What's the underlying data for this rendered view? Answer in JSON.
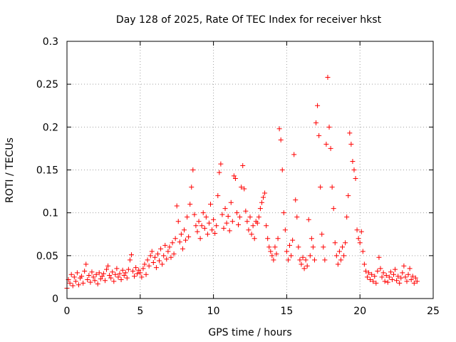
{
  "chart_data": {
    "type": "scatter",
    "title": "Day 128 of 2025, Rate Of TEC Index for receiver hkst",
    "xlabel": "GPS time / hours",
    "ylabel": "ROTI / TECUs",
    "xlim": [
      0,
      25
    ],
    "ylim": [
      0,
      0.3
    ],
    "xticks": [
      0,
      5,
      10,
      15,
      20,
      25
    ],
    "xtick_labels": [
      "0",
      "5",
      "10",
      "15",
      "20",
      "25"
    ],
    "yticks": [
      0,
      0.05,
      0.1,
      0.15,
      0.2,
      0.25,
      0.3
    ],
    "ytick_labels": [
      "0",
      "0.05",
      "0.1",
      "0.15",
      "0.2",
      "0.25",
      "0.3"
    ],
    "grid": true,
    "marker": "+",
    "color": "#ff0000",
    "series": [
      {
        "points": [
          [
            0.0,
            0.012
          ],
          [
            0.1,
            0.022
          ],
          [
            0.2,
            0.018
          ],
          [
            0.3,
            0.028
          ],
          [
            0.4,
            0.015
          ],
          [
            0.5,
            0.025
          ],
          [
            0.6,
            0.02
          ],
          [
            0.7,
            0.03
          ],
          [
            0.8,
            0.016
          ],
          [
            0.9,
            0.024
          ],
          [
            1.0,
            0.026
          ],
          [
            1.1,
            0.018
          ],
          [
            1.2,
            0.032
          ],
          [
            1.3,
            0.04
          ],
          [
            1.4,
            0.022
          ],
          [
            1.5,
            0.027
          ],
          [
            1.6,
            0.019
          ],
          [
            1.7,
            0.031
          ],
          [
            1.8,
            0.025
          ],
          [
            1.9,
            0.021
          ],
          [
            2.0,
            0.028
          ],
          [
            2.1,
            0.017
          ],
          [
            2.2,
            0.03
          ],
          [
            2.3,
            0.023
          ],
          [
            2.4,
            0.026
          ],
          [
            2.5,
            0.029
          ],
          [
            2.6,
            0.021
          ],
          [
            2.7,
            0.034
          ],
          [
            2.8,
            0.038
          ],
          [
            2.9,
            0.027
          ],
          [
            3.0,
            0.024
          ],
          [
            3.1,
            0.031
          ],
          [
            3.2,
            0.02
          ],
          [
            3.3,
            0.028
          ],
          [
            3.4,
            0.035
          ],
          [
            3.5,
            0.025
          ],
          [
            3.6,
            0.029
          ],
          [
            3.7,
            0.022
          ],
          [
            3.8,
            0.033
          ],
          [
            3.9,
            0.027
          ],
          [
            4.0,
            0.03
          ],
          [
            4.1,
            0.024
          ],
          [
            4.2,
            0.034
          ],
          [
            4.3,
            0.045
          ],
          [
            4.4,
            0.051
          ],
          [
            4.5,
            0.032
          ],
          [
            4.6,
            0.026
          ],
          [
            4.7,
            0.036
          ],
          [
            4.8,
            0.029
          ],
          [
            4.9,
            0.033
          ],
          [
            5.0,
            0.03
          ],
          [
            5.1,
            0.025
          ],
          [
            5.2,
            0.035
          ],
          [
            5.3,
            0.04
          ],
          [
            5.4,
            0.028
          ],
          [
            5.5,
            0.045
          ],
          [
            5.6,
            0.038
          ],
          [
            5.7,
            0.05
          ],
          [
            5.8,
            0.055
          ],
          [
            5.9,
            0.042
          ],
          [
            6.0,
            0.048
          ],
          [
            6.1,
            0.036
          ],
          [
            6.2,
            0.052
          ],
          [
            6.3,
            0.044
          ],
          [
            6.4,
            0.058
          ],
          [
            6.5,
            0.04
          ],
          [
            6.6,
            0.05
          ],
          [
            6.7,
            0.062
          ],
          [
            6.8,
            0.046
          ],
          [
            6.9,
            0.055
          ],
          [
            7.0,
            0.06
          ],
          [
            7.1,
            0.048
          ],
          [
            7.2,
            0.065
          ],
          [
            7.3,
            0.052
          ],
          [
            7.4,
            0.07
          ],
          [
            7.5,
            0.108
          ],
          [
            7.6,
            0.09
          ],
          [
            7.7,
            0.066
          ],
          [
            7.8,
            0.075
          ],
          [
            7.9,
            0.058
          ],
          [
            8.0,
            0.08
          ],
          [
            8.1,
            0.068
          ],
          [
            8.2,
            0.095
          ],
          [
            8.3,
            0.072
          ],
          [
            8.4,
            0.11
          ],
          [
            8.5,
            0.13
          ],
          [
            8.6,
            0.15
          ],
          [
            8.7,
            0.098
          ],
          [
            8.8,
            0.085
          ],
          [
            8.9,
            0.078
          ],
          [
            9.0,
            0.09
          ],
          [
            9.1,
            0.07
          ],
          [
            9.2,
            0.085
          ],
          [
            9.3,
            0.1
          ],
          [
            9.4,
            0.082
          ],
          [
            9.5,
            0.095
          ],
          [
            9.6,
            0.075
          ],
          [
            9.7,
            0.088
          ],
          [
            9.8,
            0.11
          ],
          [
            9.9,
            0.08
          ],
          [
            10.0,
            0.092
          ],
          [
            10.1,
            0.076
          ],
          [
            10.2,
            0.085
          ],
          [
            10.3,
            0.12
          ],
          [
            10.4,
            0.147
          ],
          [
            10.5,
            0.157
          ],
          [
            10.6,
            0.098
          ],
          [
            10.7,
            0.082
          ],
          [
            10.8,
            0.105
          ],
          [
            10.9,
            0.088
          ],
          [
            11.0,
            0.096
          ],
          [
            11.1,
            0.079
          ],
          [
            11.2,
            0.112
          ],
          [
            11.3,
            0.09
          ],
          [
            11.4,
            0.143
          ],
          [
            11.5,
            0.14
          ],
          [
            11.6,
            0.1
          ],
          [
            11.7,
            0.086
          ],
          [
            11.8,
            0.095
          ],
          [
            11.9,
            0.13
          ],
          [
            12.0,
            0.155
          ],
          [
            12.1,
            0.128
          ],
          [
            12.2,
            0.102
          ],
          [
            12.3,
            0.09
          ],
          [
            12.4,
            0.08
          ],
          [
            12.5,
            0.095
          ],
          [
            12.6,
            0.075
          ],
          [
            12.7,
            0.085
          ],
          [
            12.8,
            0.07
          ],
          [
            12.9,
            0.09
          ],
          [
            13.0,
            0.088
          ],
          [
            13.1,
            0.095
          ],
          [
            13.2,
            0.105
          ],
          [
            13.3,
            0.112
          ],
          [
            13.4,
            0.118
          ],
          [
            13.5,
            0.123
          ],
          [
            13.6,
            0.085
          ],
          [
            13.7,
            0.07
          ],
          [
            13.8,
            0.06
          ],
          [
            13.9,
            0.055
          ],
          [
            14.0,
            0.05
          ],
          [
            14.1,
            0.045
          ],
          [
            14.2,
            0.06
          ],
          [
            14.3,
            0.052
          ],
          [
            14.4,
            0.07
          ],
          [
            14.5,
            0.198
          ],
          [
            14.6,
            0.185
          ],
          [
            14.7,
            0.15
          ],
          [
            14.8,
            0.1
          ],
          [
            14.9,
            0.08
          ],
          [
            15.0,
            0.055
          ],
          [
            15.1,
            0.045
          ],
          [
            15.2,
            0.062
          ],
          [
            15.3,
            0.05
          ],
          [
            15.4,
            0.068
          ],
          [
            15.5,
            0.168
          ],
          [
            15.6,
            0.115
          ],
          [
            15.7,
            0.095
          ],
          [
            15.8,
            0.06
          ],
          [
            15.9,
            0.045
          ],
          [
            16.0,
            0.04
          ],
          [
            16.1,
            0.048
          ],
          [
            16.2,
            0.035
          ],
          [
            16.3,
            0.045
          ],
          [
            16.4,
            0.038
          ],
          [
            16.5,
            0.092
          ],
          [
            16.6,
            0.05
          ],
          [
            16.7,
            0.07
          ],
          [
            16.8,
            0.06
          ],
          [
            16.9,
            0.045
          ],
          [
            17.0,
            0.205
          ],
          [
            17.1,
            0.225
          ],
          [
            17.2,
            0.19
          ],
          [
            17.3,
            0.13
          ],
          [
            17.4,
            0.075
          ],
          [
            17.5,
            0.06
          ],
          [
            17.6,
            0.045
          ],
          [
            17.7,
            0.18
          ],
          [
            17.8,
            0.258
          ],
          [
            17.9,
            0.2
          ],
          [
            18.0,
            0.175
          ],
          [
            18.1,
            0.13
          ],
          [
            18.2,
            0.105
          ],
          [
            18.3,
            0.065
          ],
          [
            18.4,
            0.05
          ],
          [
            18.5,
            0.04
          ],
          [
            18.6,
            0.055
          ],
          [
            18.7,
            0.045
          ],
          [
            18.8,
            0.06
          ],
          [
            18.9,
            0.05
          ],
          [
            19.0,
            0.065
          ],
          [
            19.1,
            0.095
          ],
          [
            19.2,
            0.12
          ],
          [
            19.3,
            0.193
          ],
          [
            19.4,
            0.18
          ],
          [
            19.5,
            0.16
          ],
          [
            19.6,
            0.15
          ],
          [
            19.7,
            0.14
          ],
          [
            19.8,
            0.08
          ],
          [
            19.9,
            0.07
          ],
          [
            20.0,
            0.065
          ],
          [
            20.1,
            0.078
          ],
          [
            20.2,
            0.055
          ],
          [
            20.3,
            0.04
          ],
          [
            20.4,
            0.032
          ],
          [
            20.5,
            0.025
          ],
          [
            20.6,
            0.03
          ],
          [
            20.7,
            0.022
          ],
          [
            20.8,
            0.028
          ],
          [
            20.9,
            0.02
          ],
          [
            21.0,
            0.026
          ],
          [
            21.1,
            0.018
          ],
          [
            21.2,
            0.032
          ],
          [
            21.3,
            0.048
          ],
          [
            21.4,
            0.035
          ],
          [
            21.5,
            0.025
          ],
          [
            21.6,
            0.03
          ],
          [
            21.7,
            0.02
          ],
          [
            21.8,
            0.027
          ],
          [
            21.9,
            0.019
          ],
          [
            22.0,
            0.025
          ],
          [
            22.1,
            0.031
          ],
          [
            22.2,
            0.022
          ],
          [
            22.3,
            0.028
          ],
          [
            22.4,
            0.034
          ],
          [
            22.5,
            0.021
          ],
          [
            22.6,
            0.026
          ],
          [
            22.7,
            0.018
          ],
          [
            22.8,
            0.024
          ],
          [
            22.9,
            0.03
          ],
          [
            23.0,
            0.038
          ],
          [
            23.1,
            0.025
          ],
          [
            23.2,
            0.02
          ],
          [
            23.3,
            0.028
          ],
          [
            23.4,
            0.035
          ],
          [
            23.5,
            0.022
          ],
          [
            23.6,
            0.026
          ],
          [
            23.7,
            0.018
          ],
          [
            23.8,
            0.024
          ],
          [
            23.9,
            0.02
          ]
        ]
      }
    ]
  }
}
